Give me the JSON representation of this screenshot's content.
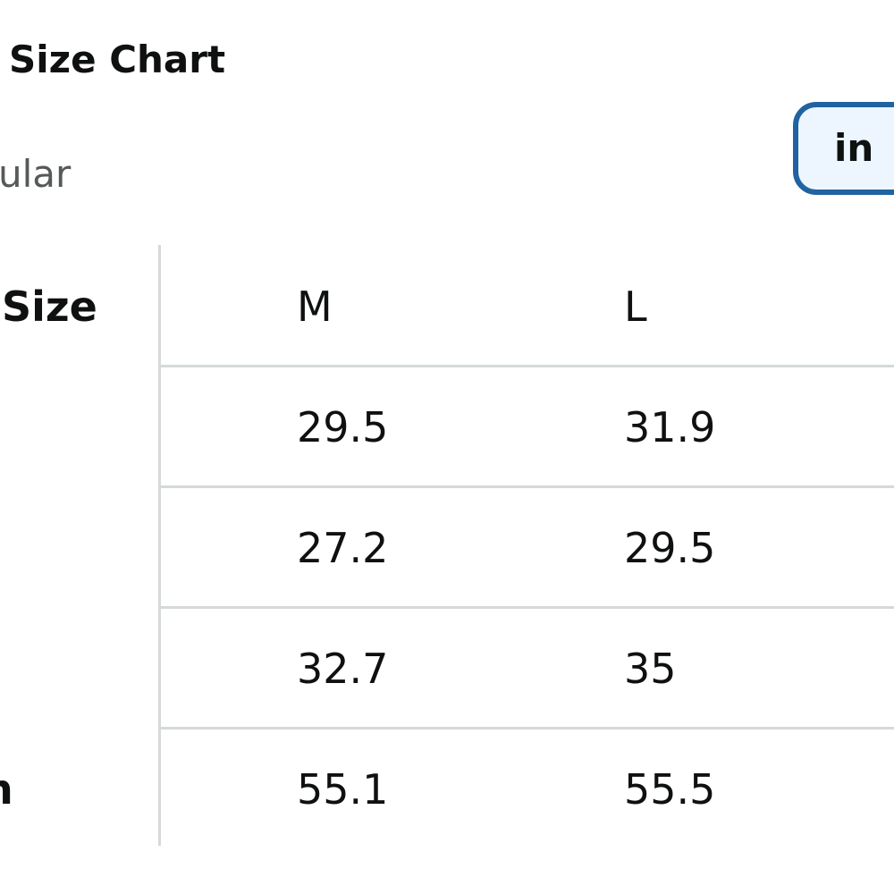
{
  "header": {
    "title": "Size Chart",
    "subtitle": "ular",
    "unit_button": "in"
  },
  "table": {
    "columns": [
      "Size",
      "M",
      "L"
    ],
    "rows": [
      {
        "cells": [
          "29.5",
          "31.9"
        ]
      },
      {
        "cells": [
          "27.2",
          "29.5"
        ]
      },
      {
        "cells": [
          "32.7",
          "35"
        ]
      },
      {
        "label": "n",
        "cells": [
          "55.1",
          "55.5"
        ]
      }
    ]
  }
}
